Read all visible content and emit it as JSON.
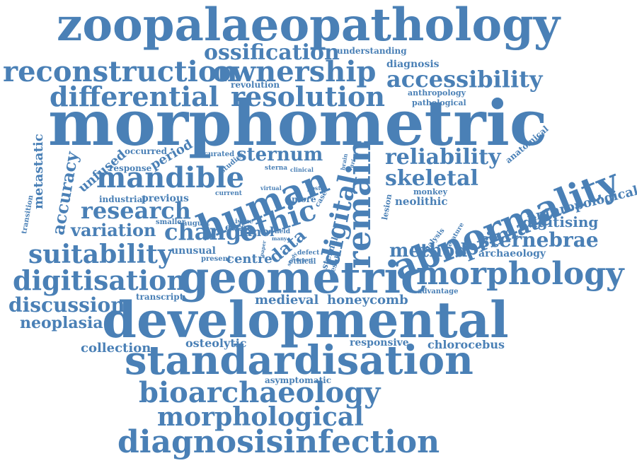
{
  "style": {
    "word_color": "#4a80b6",
    "background": "#ffffff"
  },
  "words": [
    "zoopalaeopathology",
    "ossification",
    "understanding",
    "reconstruction",
    "ownership",
    "diagnosis",
    "accessibility",
    "revolution",
    "differential",
    "resolution",
    "anthropology",
    "pathological",
    "morphometric",
    "anatomical",
    "occurred",
    "curated",
    "unfused",
    "period",
    "sternum",
    "reliability",
    "metastatic",
    "accuracy",
    "response",
    "studies",
    "sterna",
    "clinical",
    "brain",
    "varied",
    "mandible",
    "human",
    "abnormality",
    "skeletal",
    "transition",
    "current",
    "virtual",
    "industrial",
    "previous",
    "remain",
    "digital",
    "lesion",
    "post",
    "monkey",
    "anthropological",
    "more",
    "case",
    "neolithic",
    "research",
    "ethic",
    "primate",
    "data",
    "digitising",
    "smaller",
    "august",
    "issue",
    "variation",
    "change",
    "panel",
    "field",
    "many",
    "error",
    "sternebrae",
    "analysis",
    "literature",
    "suitability",
    "method",
    "archaeology",
    "sternal",
    "result",
    "defect",
    "report",
    "study",
    "paper",
    "unusual",
    "present",
    "centre",
    "ethical",
    "digitisation",
    "geometric",
    "morphology",
    "transcript",
    "advantage",
    "medieval",
    "honeycomb",
    "discussion",
    "neoplasia",
    "developmental",
    "collection",
    "osteolytic",
    "responsive",
    "chlorocebus",
    "standardisation",
    "asymptomatic",
    "bioarchaeology",
    "morphological",
    "diagnosisinfection"
  ]
}
